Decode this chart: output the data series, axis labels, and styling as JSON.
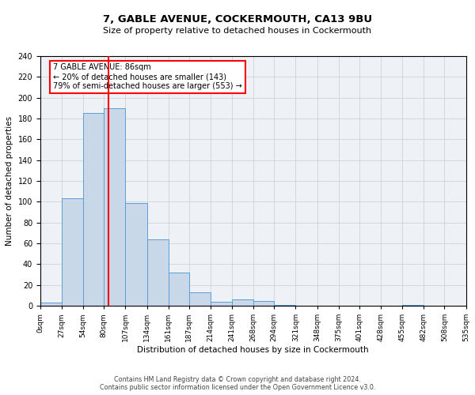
{
  "title": "7, GABLE AVENUE, COCKERMOUTH, CA13 9BU",
  "subtitle": "Size of property relative to detached houses in Cockermouth",
  "xlabel": "Distribution of detached houses by size in Cockermouth",
  "ylabel": "Number of detached properties",
  "bin_edges": [
    0,
    27,
    54,
    80,
    107,
    134,
    161,
    187,
    214,
    241,
    268,
    294,
    321,
    348,
    375,
    401,
    428,
    455,
    482,
    508,
    535
  ],
  "bin_labels": [
    "0sqm",
    "27sqm",
    "54sqm",
    "80sqm",
    "107sqm",
    "134sqm",
    "161sqm",
    "187sqm",
    "214sqm",
    "241sqm",
    "268sqm",
    "294sqm",
    "321sqm",
    "348sqm",
    "375sqm",
    "401sqm",
    "428sqm",
    "455sqm",
    "482sqm",
    "508sqm",
    "535sqm"
  ],
  "counts": [
    3,
    103,
    185,
    190,
    99,
    64,
    32,
    13,
    4,
    6,
    5,
    1,
    0,
    0,
    0,
    0,
    0,
    1,
    0,
    0
  ],
  "bar_color": "#c8d8e8",
  "bar_edge_color": "#5a9fd4",
  "property_line_x": 86,
  "property_line_color": "red",
  "ylim": [
    0,
    240
  ],
  "yticks": [
    0,
    20,
    40,
    60,
    80,
    100,
    120,
    140,
    160,
    180,
    200,
    220,
    240
  ],
  "annotation_title": "7 GABLE AVENUE: 86sqm",
  "annotation_line1": "← 20% of detached houses are smaller (143)",
  "annotation_line2": "79% of semi-detached houses are larger (553) →",
  "annotation_box_color": "white",
  "annotation_box_edge_color": "red",
  "footer1": "Contains HM Land Registry data © Crown copyright and database right 2024.",
  "footer2": "Contains public sector information licensed under the Open Government Licence v3.0.",
  "background_color": "#eef2f7",
  "grid_color": "#cccccc"
}
